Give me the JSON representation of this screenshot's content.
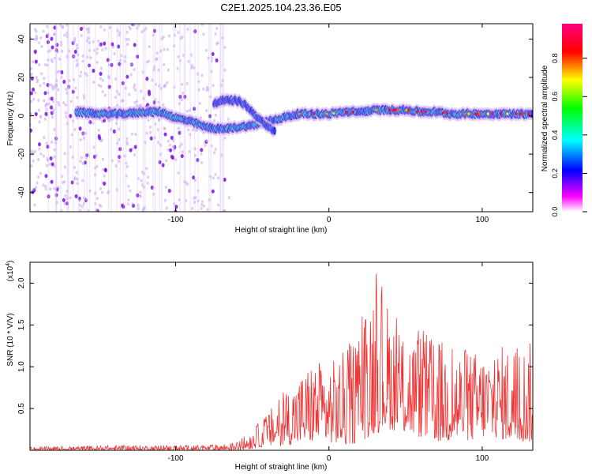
{
  "title": "C2E1.2025.104.23.36.E05",
  "chart_data": [
    {
      "type": "heatmap",
      "xlabel": "Height of straight line (km)",
      "ylabel": "Frequency (Hz)",
      "xlim": [
        -195,
        133
      ],
      "ylim": [
        -50,
        48
      ],
      "xticks": [
        -100,
        0,
        100
      ],
      "yticks": [
        -40,
        -20,
        0,
        20,
        40
      ],
      "grid": false,
      "colorbar": {
        "label": "Normalized spectral amplitude",
        "range": [
          0,
          0.98
        ],
        "ticks": [
          0,
          0.2,
          0.4,
          0.6,
          0.8
        ],
        "colors": [
          "#ffffff",
          "#ff00ff",
          "#0000ff",
          "#00ffff",
          "#00ff00",
          "#ffff00",
          "#ff0000",
          "#ff0080"
        ]
      },
      "band": {
        "x": [
          -165,
          -150,
          -135,
          -120,
          -110,
          -100,
          -90,
          -80,
          -70,
          -60,
          -50,
          -40,
          -30,
          -20,
          -10,
          0,
          10,
          20,
          30,
          40,
          50,
          60,
          70,
          80,
          90,
          100,
          110,
          120,
          133
        ],
        "freq": [
          2,
          1,
          1,
          2,
          2,
          -1,
          -3,
          -6,
          -7,
          -6,
          -5,
          -3,
          -1,
          1,
          1,
          1,
          2,
          2,
          3,
          3,
          3,
          2,
          2,
          1,
          1,
          1,
          1,
          1,
          1
        ]
      },
      "branch": {
        "x": [
          -75,
          -70,
          -60,
          -55,
          -50,
          -45,
          -40,
          -35
        ],
        "freq": [
          6,
          8,
          8,
          6,
          2,
          -2,
          -6,
          -8
        ]
      },
      "noise_region": {
        "x": [
          -195,
          -65
        ],
        "freq": [
          -50,
          48
        ]
      }
    },
    {
      "type": "line",
      "xlabel": "Height of straight line (km)",
      "ylabel": "SNR (10 * V/V)",
      "scale_label": "(x10",
      "scale_exponent": "4",
      "scale_close": ")",
      "xlim": [
        -195,
        133
      ],
      "ylim": [
        0,
        2.25
      ],
      "xticks": [
        -100,
        0,
        100
      ],
      "yticks": [
        0.5,
        1.0,
        1.5,
        2.0
      ],
      "ytick_labels": [
        "0.5",
        "1.0",
        "1.5",
        "2.0"
      ],
      "color": "#ee3333",
      "grid": false,
      "envelope": {
        "x": [
          -195,
          -140,
          -80,
          -60,
          -50,
          -40,
          -30,
          -20,
          -10,
          0,
          10,
          20,
          30,
          40,
          50,
          60,
          70,
          80,
          90,
          100,
          110,
          120,
          133
        ],
        "max": [
          0.04,
          0.06,
          0.06,
          0.1,
          0.25,
          0.45,
          0.7,
          0.9,
          1.1,
          1.05,
          1.2,
          1.5,
          2.2,
          1.7,
          1.45,
          1.45,
          1.35,
          1.3,
          1.2,
          1.2,
          1.25,
          1.3,
          1.3
        ],
        "min": [
          0.0,
          0.0,
          0.0,
          0.0,
          0.02,
          0.05,
          0.05,
          0.08,
          0.1,
          0.1,
          0.05,
          0.1,
          0.2,
          0.25,
          0.2,
          0.15,
          0.1,
          0.1,
          0.1,
          0.15,
          0.15,
          0.1,
          0.1
        ]
      }
    }
  ]
}
